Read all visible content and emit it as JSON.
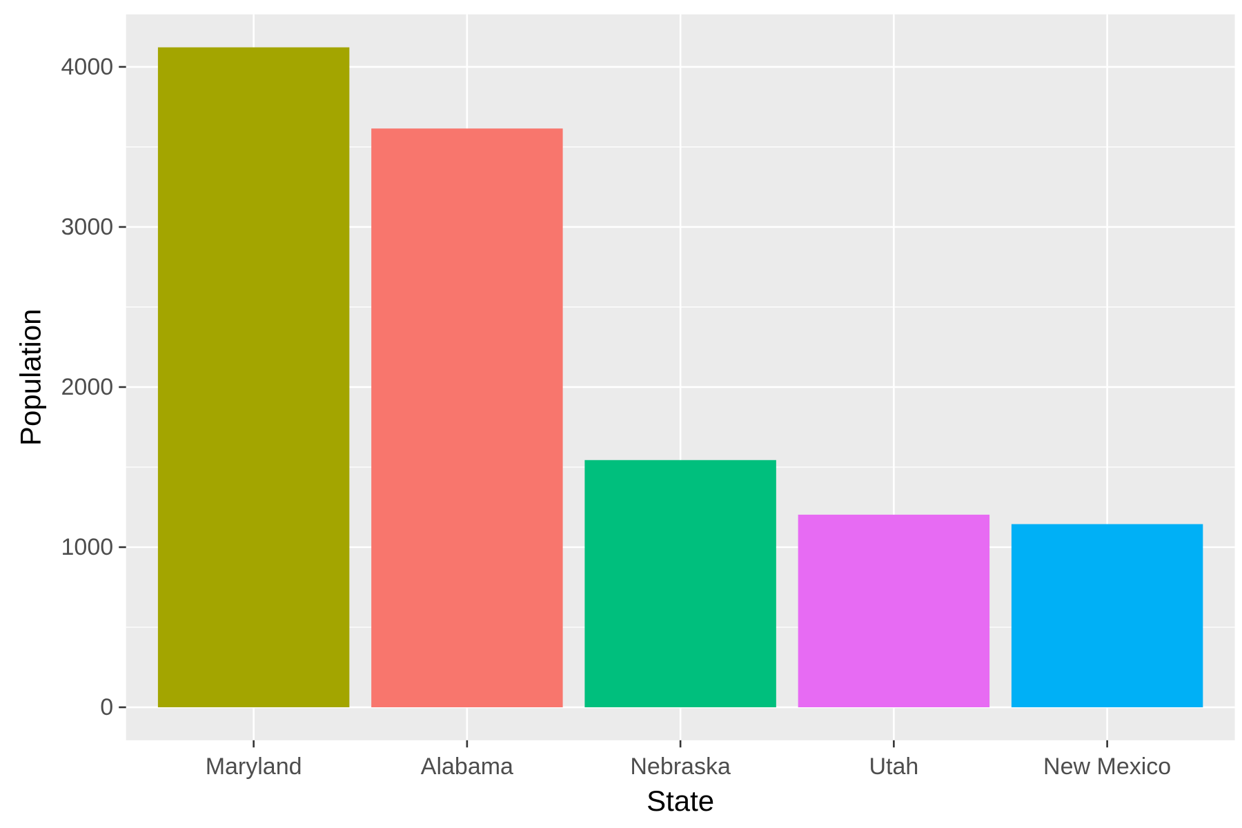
{
  "chart_data": {
    "type": "bar",
    "title": "",
    "xlabel": "State",
    "ylabel": "Population",
    "categories": [
      "Maryland",
      "Alabama",
      "Nebraska",
      "Utah",
      "New Mexico"
    ],
    "values": [
      4122,
      3615,
      1544,
      1203,
      1144
    ],
    "colors": [
      "#A3A500",
      "#F8766D",
      "#00BF7D",
      "#E76BF3",
      "#00B0F6"
    ],
    "y_ticks": [
      0,
      1000,
      2000,
      3000,
      4000
    ],
    "y_tick_labels": [
      "0",
      "1000",
      "2000",
      "3000",
      "4000"
    ],
    "ylim": [
      -206,
      4328
    ],
    "grid": true,
    "legend": "none",
    "panel_background": "#EBEBEB",
    "grid_color": "#FFFFFF",
    "tick_color": "#333333"
  }
}
